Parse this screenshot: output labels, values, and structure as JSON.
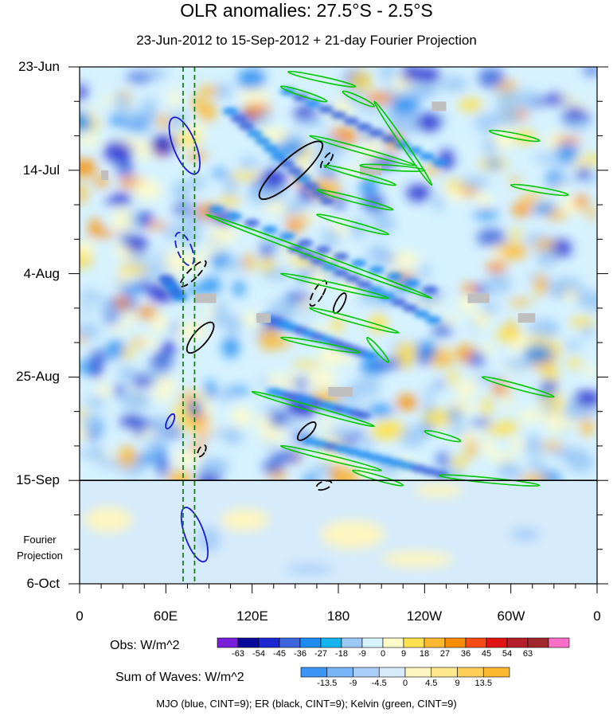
{
  "chart_data": {
    "type": "heatmap",
    "title": "OLR anomalies: 27.5°S - 2.5°S",
    "subtitle": "23-Jun-2012 to 15-Sep-2012 + 21-day Fourier Projection",
    "x_ticks": [
      "0",
      "60E",
      "120E",
      "180",
      "120W",
      "60W",
      "0"
    ],
    "x_range_deg_east": [
      0,
      360
    ],
    "y_ticks": [
      "23-Jun",
      "14-Jul",
      "4-Aug",
      "25-Aug",
      "15-Sep",
      "6-Oct"
    ],
    "y_range_days": [
      0,
      105
    ],
    "projection_start": "15-Sep",
    "projection_note": [
      "Fourier",
      "Projection"
    ],
    "obs_colorbar": {
      "label": "Obs: W/m^2",
      "levels": [
        "-63",
        "-54",
        "-45",
        "-36",
        "-27",
        "-18",
        "-9",
        "0",
        "9",
        "18",
        "27",
        "36",
        "45",
        "54",
        "63"
      ],
      "colors": [
        "#7a1fd9",
        "#0a0a9a",
        "#1e28d0",
        "#3c64dc",
        "#1e8cf0",
        "#14b4f0",
        "#9cc8f5",
        "#d6f2ff",
        "#fffbc8",
        "#fee050",
        "#fbb830",
        "#fa8c00",
        "#f54b14",
        "#e11414",
        "#b41e28",
        "#a0282d",
        "#ff6ec8"
      ]
    },
    "waves_colorbar": {
      "label": "Sum of Waves: W/m^2",
      "levels": [
        "-13.5",
        "-9",
        "-4.5",
        "0",
        "4.5",
        "9",
        "13.5"
      ],
      "colors": [
        "#3c96f5",
        "#78b4f8",
        "#a8cef9",
        "#d6ebfb",
        "#fdf5c0",
        "#fee88e",
        "#fdcf59",
        "#fbb830"
      ]
    },
    "contour_legend": "MJO (blue, CINT=9); ER (black, CINT=9); Kelvin (green, CINT=9)",
    "series": [
      {
        "wave": "MJO",
        "color": "#1a1ad0",
        "reference_longitudes": [
          72,
          80
        ]
      },
      {
        "wave": "ER",
        "color": "#000000"
      },
      {
        "wave": "Kelvin",
        "color": "#00c800"
      }
    ],
    "grid": false,
    "legend_placement": "bottom"
  }
}
